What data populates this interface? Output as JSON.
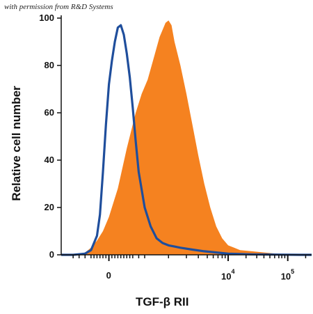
{
  "credit": "with permission from R&D Systems",
  "chart_data": {
    "type": "area",
    "xlabel": "TGF-β RII",
    "ylabel": "Relative cell number",
    "ylim": [
      0,
      100
    ],
    "yticks": [
      0,
      20,
      40,
      60,
      80,
      100
    ],
    "x_scale": "biexponential",
    "xticks": [
      {
        "base": "0",
        "exp": ""
      },
      {
        "base": "10",
        "exp": "4"
      },
      {
        "base": "10",
        "exp": "5"
      }
    ],
    "series": [
      {
        "style": "filled",
        "color": "#f58220",
        "x": [
          -0.8,
          -0.55,
          -0.4,
          -0.3,
          -0.2,
          -0.1,
          0.0,
          0.15,
          0.3,
          0.45,
          0.55,
          0.65,
          0.75,
          0.85,
          0.95,
          1.0,
          1.05,
          1.1,
          1.2,
          1.3,
          1.4,
          1.5,
          1.6,
          1.7,
          1.8,
          1.9,
          2.0,
          2.1,
          2.2,
          2.4,
          2.6,
          2.8,
          3.0,
          3.2,
          3.4
        ],
        "y": [
          0,
          0,
          1,
          3,
          6,
          10,
          16,
          28,
          45,
          60,
          68,
          74,
          83,
          92,
          98,
          99,
          97,
          90,
          80,
          68,
          55,
          42,
          30,
          20,
          12,
          7,
          4,
          3,
          2,
          1.5,
          1,
          0.5,
          0.3,
          0.2,
          0
        ]
      },
      {
        "style": "line",
        "color": "#1f4e9c",
        "x": [
          -0.8,
          -0.6,
          -0.4,
          -0.3,
          -0.2,
          -0.15,
          -0.1,
          -0.05,
          0.0,
          0.05,
          0.1,
          0.15,
          0.2,
          0.25,
          0.3,
          0.35,
          0.4,
          0.45,
          0.5,
          0.6,
          0.7,
          0.8,
          0.9,
          1.0,
          1.2,
          1.4,
          1.6,
          1.8,
          2.0,
          2.4,
          2.8,
          3.2,
          3.4
        ],
        "y": [
          0,
          0,
          0.5,
          2,
          8,
          17,
          35,
          55,
          72,
          82,
          90,
          96,
          97,
          93,
          85,
          75,
          62,
          48,
          35,
          20,
          12,
          7,
          5,
          4,
          3,
          2.2,
          1.5,
          1,
          0.5,
          0.2,
          0.1,
          0,
          0
        ]
      }
    ]
  }
}
